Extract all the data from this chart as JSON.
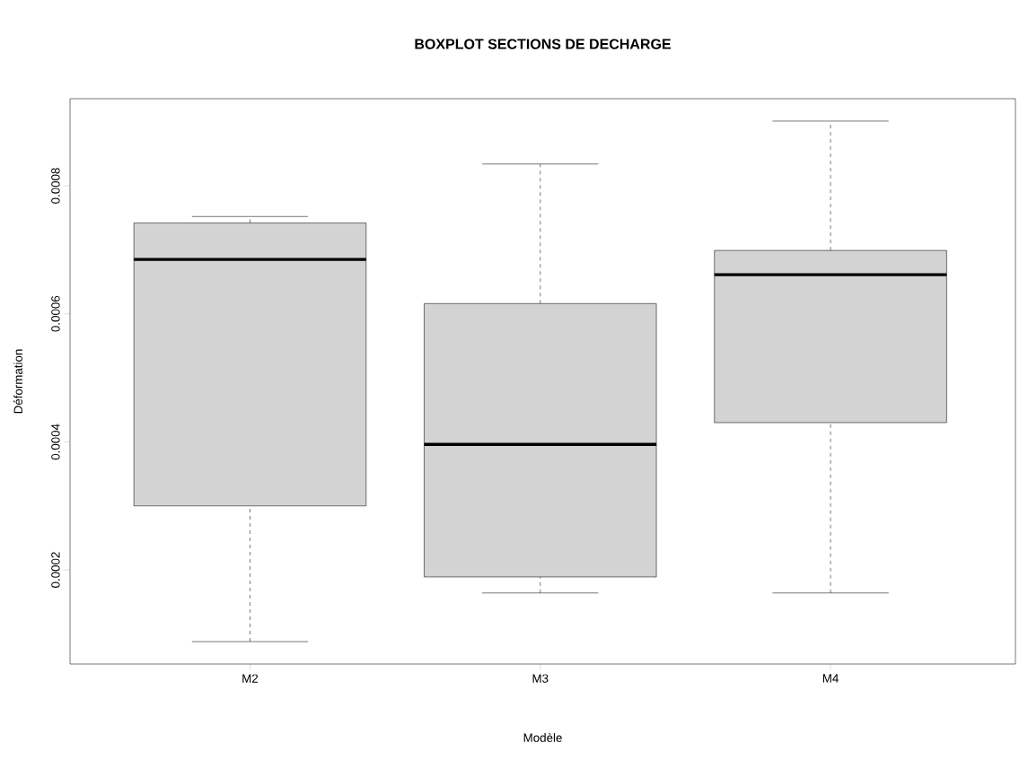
{
  "chart_data": {
    "type": "box",
    "title": "BOXPLOT SECTIONS DE DECHARGE",
    "xlabel": "Modèle",
    "ylabel": "Déformation",
    "categories": [
      "M2",
      "M3",
      "M4"
    ],
    "series": [
      {
        "color": "#d3d3d3",
        "boxes": [
          {
            "low": 8.8e-05,
            "q1": 0.0003,
            "median": 0.000685,
            "q3": 0.000742,
            "high": 0.000752
          },
          {
            "low": 0.000164,
            "q1": 0.000189,
            "median": 0.000396,
            "q3": 0.000616,
            "high": 0.000834
          },
          {
            "low": 0.000164,
            "q1": 0.00043,
            "median": 0.000661,
            "q3": 0.000699,
            "high": 0.000901
          }
        ]
      }
    ],
    "ylim": [
      5.3e-05,
      0.000936
    ],
    "yticks": [
      0.0002,
      0.0004,
      0.0006,
      0.0008
    ],
    "grid": false
  }
}
